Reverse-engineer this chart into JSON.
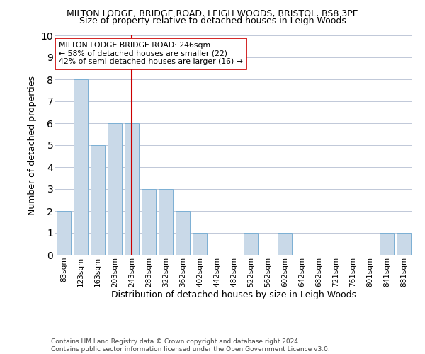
{
  "title": "MILTON LODGE, BRIDGE ROAD, LEIGH WOODS, BRISTOL, BS8 3PE",
  "subtitle": "Size of property relative to detached houses in Leigh Woods",
  "xlabel": "Distribution of detached houses by size in Leigh Woods",
  "ylabel": "Number of detached properties",
  "footer_line1": "Contains HM Land Registry data © Crown copyright and database right 2024.",
  "footer_line2": "Contains public sector information licensed under the Open Government Licence v3.0.",
  "categories": [
    "83sqm",
    "123sqm",
    "163sqm",
    "203sqm",
    "243sqm",
    "283sqm",
    "322sqm",
    "362sqm",
    "402sqm",
    "442sqm",
    "482sqm",
    "522sqm",
    "562sqm",
    "602sqm",
    "642sqm",
    "682sqm",
    "721sqm",
    "761sqm",
    "801sqm",
    "841sqm",
    "881sqm"
  ],
  "values": [
    2,
    8,
    5,
    6,
    6,
    3,
    3,
    2,
    1,
    0,
    0,
    1,
    0,
    1,
    0,
    0,
    0,
    0,
    0,
    1,
    1
  ],
  "bar_color": "#c9d9e8",
  "bar_edge_color": "#7bafd4",
  "grid_color": "#c0c8d8",
  "vline_index": 4,
  "vline_color": "#cc0000",
  "annotation_text": "MILTON LODGE BRIDGE ROAD: 246sqm\n← 58% of detached houses are smaller (22)\n42% of semi-detached houses are larger (16) →",
  "annotation_box_color": "#ffffff",
  "annotation_box_edge": "#cc0000",
  "ylim": [
    0,
    10
  ],
  "yticks": [
    0,
    1,
    2,
    3,
    4,
    5,
    6,
    7,
    8,
    9,
    10
  ],
  "title_fontsize": 9,
  "subtitle_fontsize": 9,
  "ylabel_fontsize": 9,
  "xlabel_fontsize": 9,
  "tick_fontsize": 7.5,
  "footer_fontsize": 6.5,
  "background_color": "#ffffff"
}
